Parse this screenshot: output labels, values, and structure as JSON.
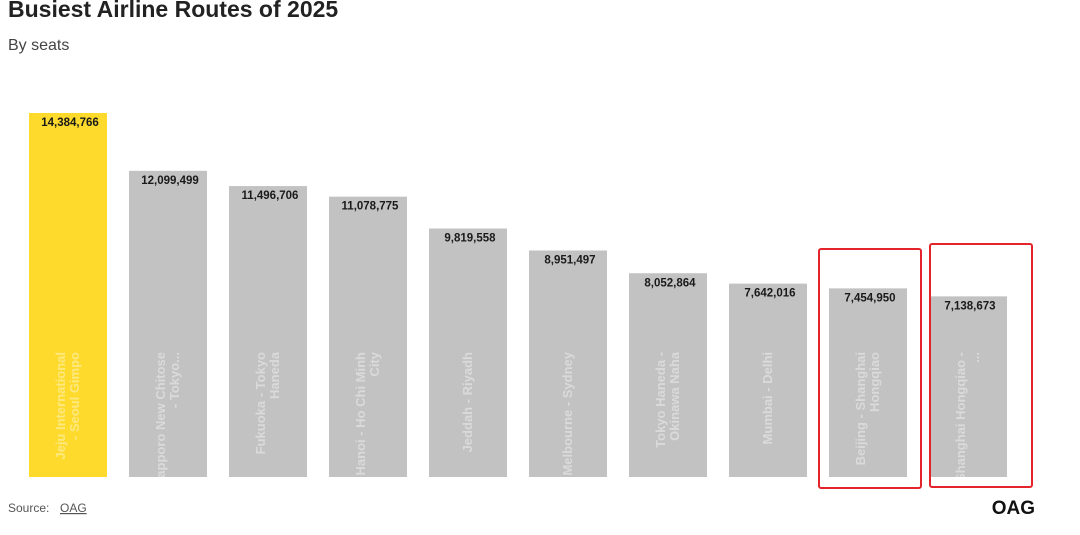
{
  "chart_data": {
    "type": "bar",
    "title": "Busiest Airline Routes of 2025",
    "subtitle": "By seats",
    "categories": [
      "Jeju International - Seoul Gimpo",
      "Sapporo New Chitose - Tokyo...",
      "Fukuoka - Tokyo Haneda",
      "Hanoi - Ho Chi Minh City",
      "Jeddah - Riyadh",
      "Melbourne - Sydney",
      "Tokyo Haneda - Okinawa Naha",
      "Mumbai - Delhi",
      "Beijing - Shanghai Hongqiao",
      "Shanghai Hongqiao - ..."
    ],
    "values": [
      14384766,
      12099499,
      11496706,
      11078775,
      9819558,
      8951497,
      8052864,
      7642016,
      7454950,
      7138673
    ],
    "value_labels": [
      "14,384,766",
      "12,099,499",
      "11,496,706",
      "11,078,775",
      "9,819,558",
      "8,951,497",
      "8,052,864",
      "7,642,016",
      "7,454,950",
      "7,138,673"
    ],
    "colors": [
      "#fdda2c",
      "#c2c2c2",
      "#c2c2c2",
      "#c2c2c2",
      "#c2c2c2",
      "#c2c2c2",
      "#c2c2c2",
      "#c2c2c2",
      "#c2c2c2",
      "#c2c2c2"
    ],
    "source_label": "Source:",
    "source_link": "OAG",
    "logo": "OAG"
  }
}
